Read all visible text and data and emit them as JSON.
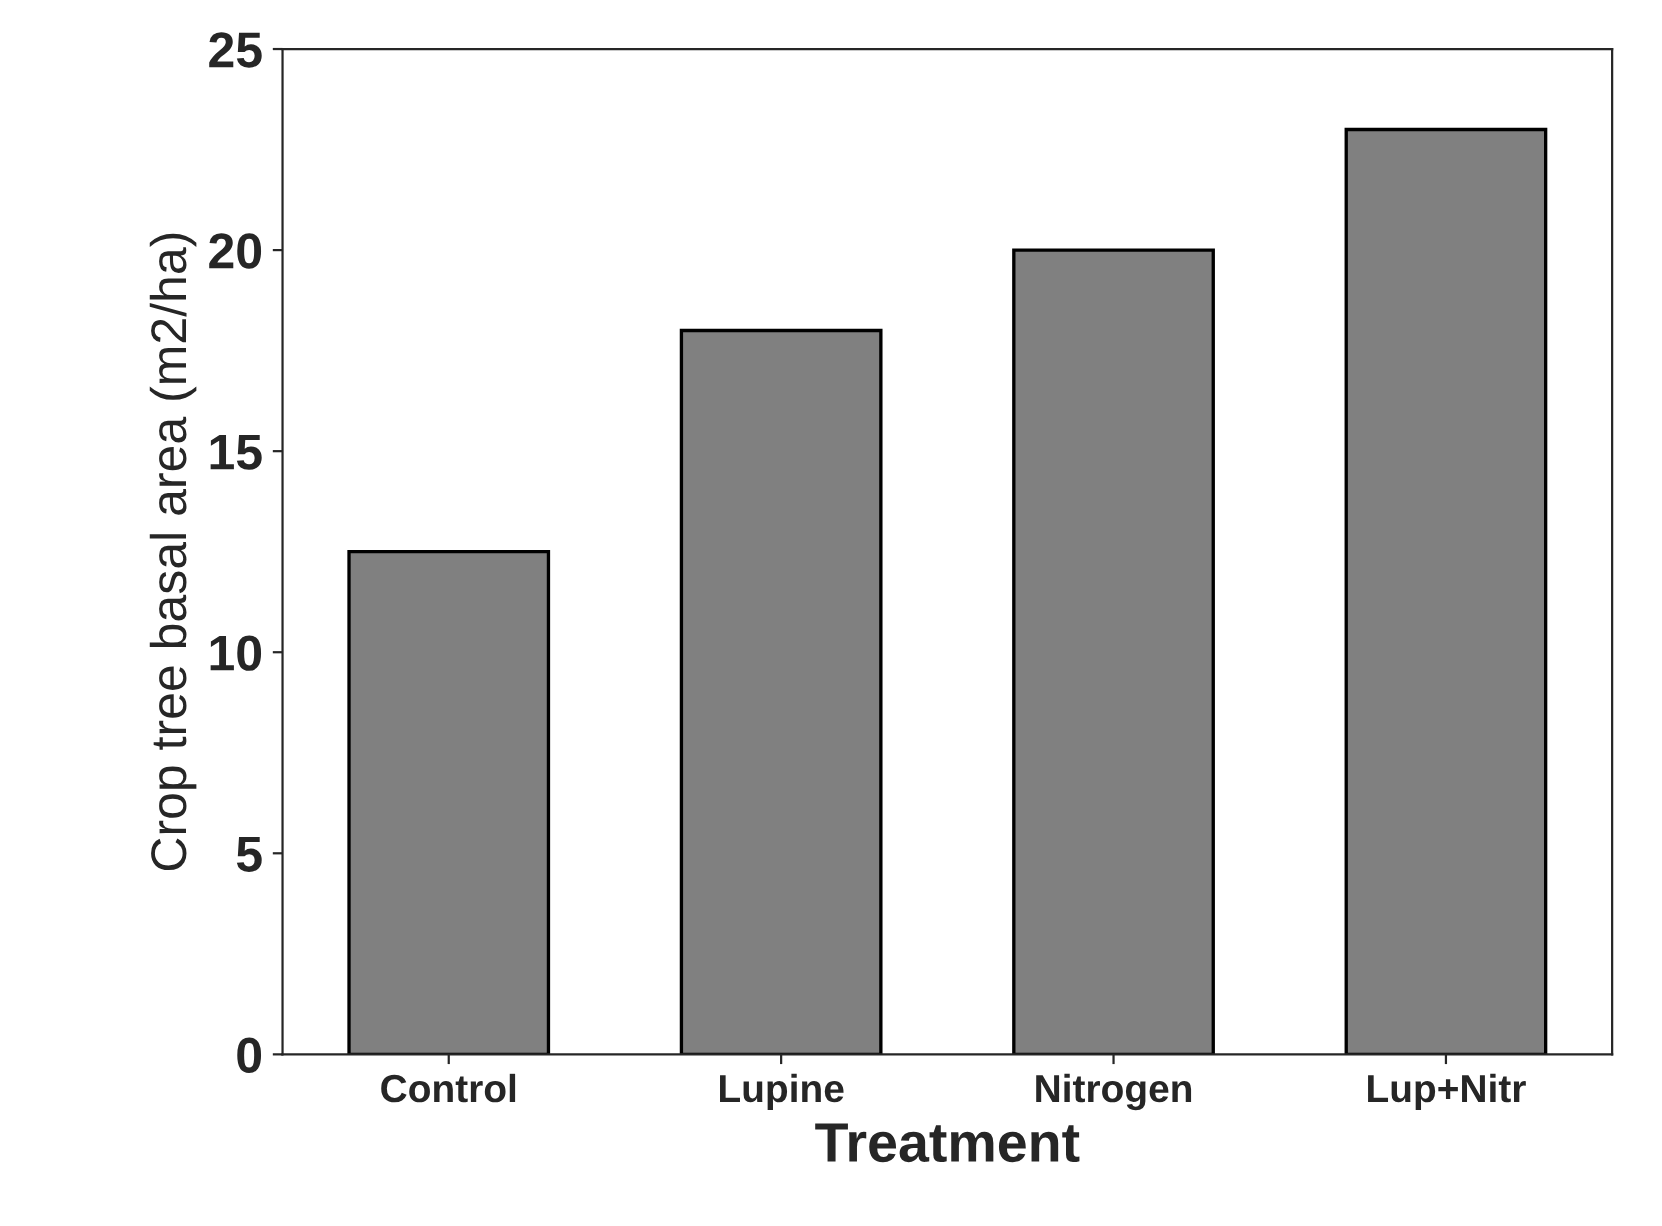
{
  "chart_data": {
    "type": "bar",
    "xlabel": "Treatment",
    "ylabel": "Crop tree basal area (m2/ha)",
    "categories": [
      "Control",
      "Lupine",
      "Nitrogen",
      "Lup+Nitr"
    ],
    "values": [
      12.5,
      18,
      20,
      23
    ],
    "color": "#808080",
    "ylim": [
      0,
      25
    ],
    "yticks": [
      0,
      5,
      10,
      15,
      20,
      25
    ],
    "grid": false
  }
}
